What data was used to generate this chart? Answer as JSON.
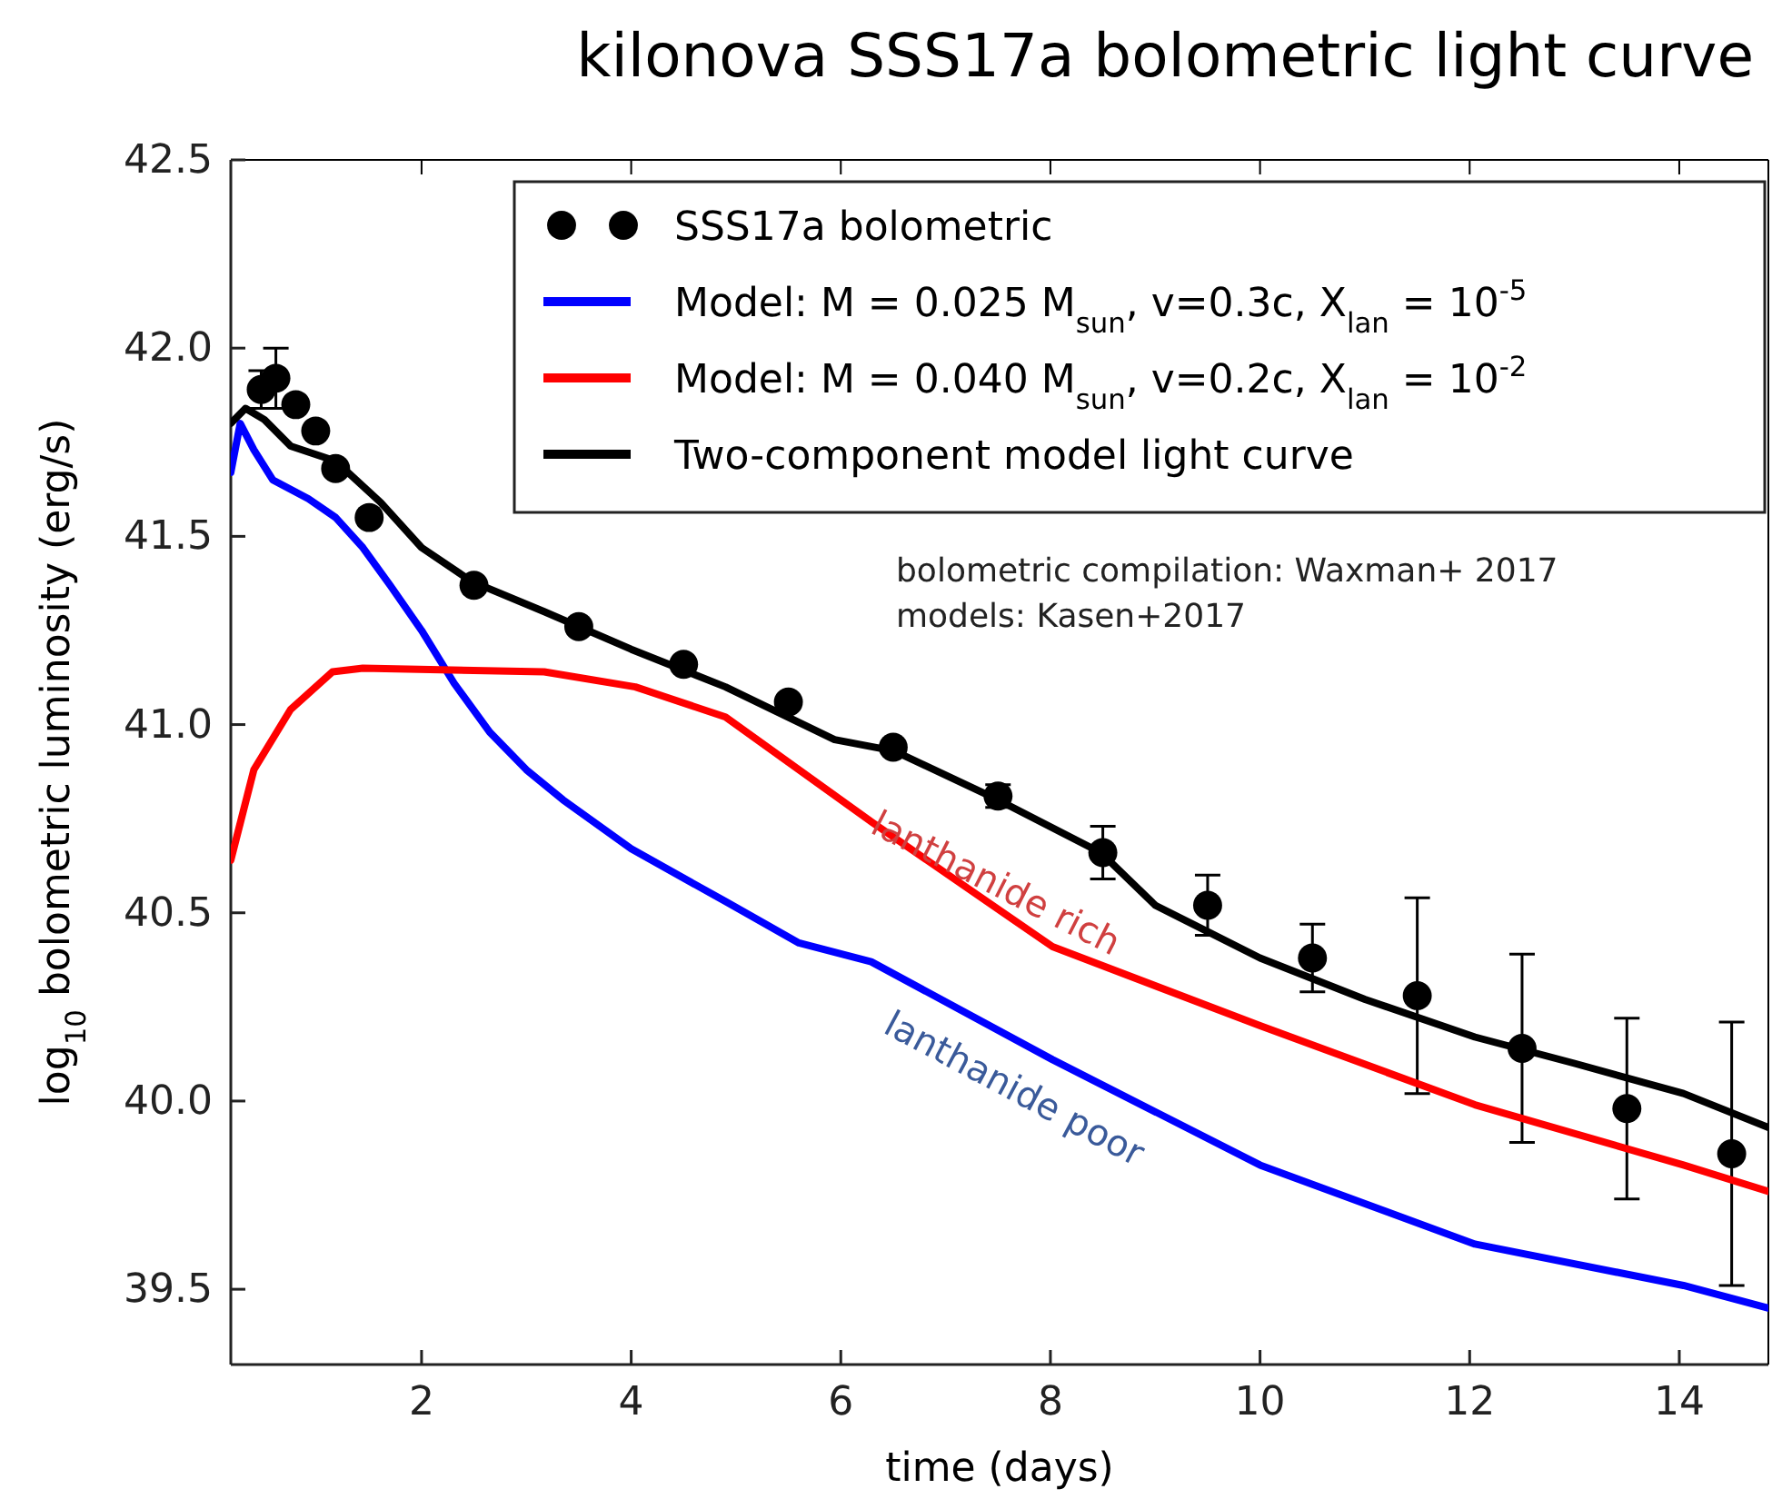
{
  "chart_data": {
    "type": "line",
    "title": "kilonova SSS17a bolometric light curve",
    "xlabel": "time (days)",
    "ylabel": "log$_{10}$ bolometric luminosity (erg/s)",
    "xlim": [
      0.18,
      14.85
    ],
    "ylim": [
      39.3,
      42.5
    ],
    "xticks": [
      2,
      4,
      6,
      8,
      10,
      12,
      14
    ],
    "yticks": [
      39.5,
      {
        "value": 40,
        "label": "40.0"
      },
      40.5,
      {
        "value": 41,
        "label": "41.0"
      },
      41.5,
      {
        "value": 42,
        "label": "42.0"
      },
      42.5
    ],
    "grid": false,
    "legend": "top right",
    "line_style": "solid",
    "annotations": [
      "bolometric compilation: Waxman+ 2017",
      "models: Kasen+2017",
      "lanthanide rich",
      "lanthanide poor"
    ],
    "series": [
      {
        "name": "SSS17a bolometric",
        "type": "scatter",
        "marker": "circle",
        "color": "#000000",
        "x": [
          0.47,
          0.61,
          0.8,
          0.99,
          1.18,
          1.5,
          2.5,
          3.5,
          4.5,
          5.5,
          6.5,
          7.5,
          8.5,
          9.5,
          10.5,
          11.5,
          12.5,
          13.5,
          14.5
        ],
        "values": [
          41.89,
          41.92,
          41.85,
          41.78,
          41.68,
          41.55,
          41.37,
          41.26,
          41.16,
          41.06,
          40.94,
          40.81,
          40.66,
          40.52,
          40.38,
          40.28,
          40.14,
          39.98,
          39.86
        ],
        "errors": [
          0.05,
          0.08,
          null,
          null,
          null,
          null,
          null,
          null,
          null,
          null,
          null,
          0.03,
          0.07,
          0.08,
          0.09,
          0.26,
          0.25,
          0.24,
          0.35
        ]
      },
      {
        "name": "Model: M = 0.025 M$_{sun}$, v=0.3c, X$_{lan}$ = 10$^{-5}$",
        "color": "#0000ff",
        "x": [
          0.18,
          0.27,
          0.4,
          0.58,
          0.92,
          1.18,
          1.44,
          1.7,
          2.0,
          2.31,
          2.65,
          3.0,
          3.35,
          4.0,
          4.9,
          5.6,
          6.29,
          8.02,
          10.0,
          12.05,
          14.04,
          14.85
        ],
        "values": [
          41.67,
          41.8,
          41.73,
          41.65,
          41.6,
          41.55,
          41.47,
          41.37,
          41.25,
          41.11,
          40.98,
          40.88,
          40.8,
          40.67,
          40.53,
          40.42,
          40.37,
          40.11,
          39.83,
          39.62,
          39.51,
          39.45
        ]
      },
      {
        "name": "Model: M = 0.040 M$_{sun}$, v=0.2c, X$_{lan}$ = 10$^{-2}$",
        "color": "#ff0000",
        "x": [
          0.18,
          0.4,
          0.75,
          1.15,
          1.44,
          3.17,
          4.04,
          4.9,
          6.3,
          8.02,
          10.0,
          12.05,
          14.04,
          14.85
        ],
        "values": [
          40.64,
          40.88,
          41.04,
          41.14,
          41.15,
          41.14,
          41.1,
          41.02,
          40.74,
          40.41,
          40.2,
          39.99,
          39.83,
          39.76
        ]
      },
      {
        "name": "Two-component model light curve",
        "color": "#000000",
        "x": [
          0.18,
          0.32,
          0.5,
          0.75,
          1.18,
          1.61,
          2.0,
          2.48,
          3.17,
          4.0,
          4.9,
          5.94,
          6.51,
          7.5,
          8.48,
          9.0,
          10.0,
          11.0,
          12.05,
          13.0,
          14.04,
          14.85
        ],
        "values": [
          41.8,
          41.84,
          41.81,
          41.74,
          41.7,
          41.59,
          41.47,
          41.38,
          41.3,
          41.2,
          41.1,
          40.96,
          40.93,
          40.8,
          40.66,
          40.52,
          40.38,
          40.27,
          40.17,
          40.1,
          40.02,
          39.93
        ]
      }
    ]
  }
}
